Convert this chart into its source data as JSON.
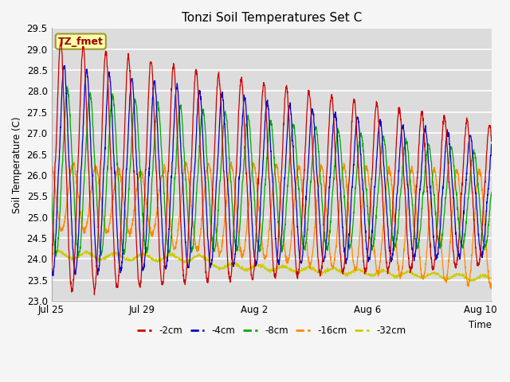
{
  "title": "Tonzi Soil Temperatures Set C",
  "xlabel": "Time",
  "ylabel": "Soil Temperature (C)",
  "ylim": [
    23.0,
    29.5
  ],
  "yticks": [
    23.0,
    23.5,
    24.0,
    24.5,
    25.0,
    25.5,
    26.0,
    26.5,
    27.0,
    27.5,
    28.0,
    28.5,
    29.0,
    29.5
  ],
  "xtick_labels": [
    "Jul 25",
    "Jul 29",
    "Aug 2",
    "Aug 6",
    "Aug 10"
  ],
  "xtick_positions": [
    0,
    4,
    9,
    14,
    19
  ],
  "colors": {
    "-2cm": "#cc0000",
    "-4cm": "#0000cc",
    "-8cm": "#00aa00",
    "-16cm": "#ff8800",
    "-32cm": "#cccc00"
  },
  "legend_label": "TZ_fmet",
  "fig_bg": "#f0f0f0",
  "plot_bg": "#dcdcdc",
  "grid_color": "#ffffff"
}
